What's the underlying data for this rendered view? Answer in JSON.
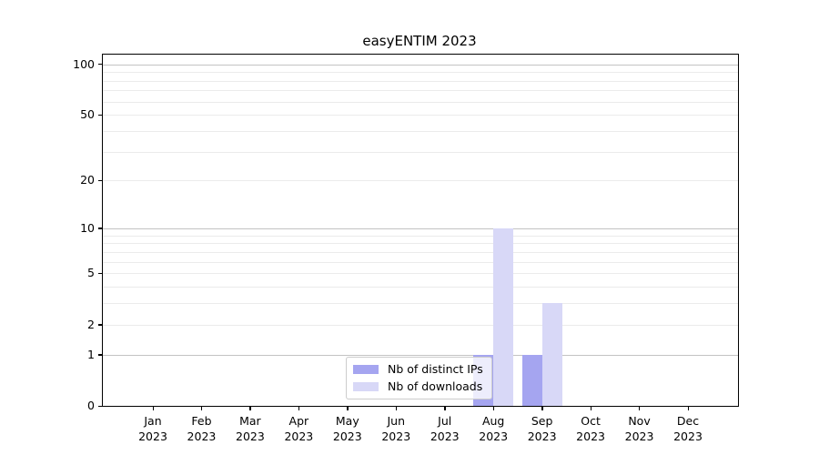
{
  "chart_data": {
    "type": "bar",
    "title": "easyENTIM 2023",
    "categories": [
      "Jan",
      "Feb",
      "Mar",
      "Apr",
      "May",
      "Jun",
      "Jul",
      "Aug",
      "Sep",
      "Oct",
      "Nov",
      "Dec"
    ],
    "category_year": "2023",
    "series": [
      {
        "name": "Nb of distinct IPs",
        "color": "#a5a5f0",
        "values": [
          0,
          0,
          0,
          0,
          0,
          0,
          0,
          1,
          1,
          0,
          0,
          0
        ]
      },
      {
        "name": "Nb of downloads",
        "color": "#d8d8f7",
        "values": [
          0,
          0,
          0,
          0,
          0,
          0,
          0,
          10,
          3,
          0,
          0,
          0
        ]
      }
    ],
    "y_axis": {
      "scale": "log1p",
      "tick_values": [
        0,
        1,
        2,
        5,
        10,
        20,
        50,
        100
      ],
      "major_gridlines": [
        1,
        10,
        100
      ],
      "minor_gridlines": [
        2,
        3,
        4,
        5,
        6,
        7,
        8,
        9,
        20,
        30,
        40,
        50,
        60,
        70,
        80,
        90
      ],
      "ylim": [
        0,
        114
      ]
    },
    "xlabel": "",
    "ylabel": "",
    "grid": true,
    "legend_position": "lower center, inside plot"
  },
  "colors": {
    "background": "#ffffff",
    "axis_frame": "#000000",
    "major_grid": "#c3c3c3",
    "minor_grid": "#ebebeb",
    "legend_border": "#cccccc",
    "legend_background": "rgba(255,255,255,0.8)",
    "text": "#000000"
  }
}
